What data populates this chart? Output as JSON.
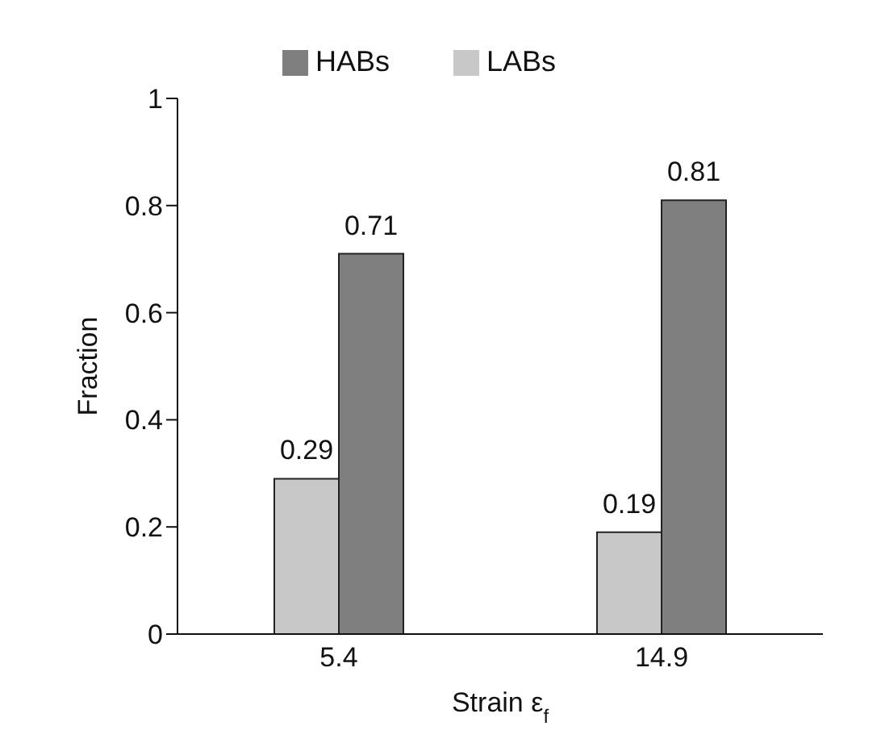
{
  "chart_data": {
    "type": "bar",
    "xlabel": "Strain ε$_{f}$",
    "ylabel": "Fraction",
    "categories": [
      "5.4",
      "14.9"
    ],
    "series": [
      {
        "name": "LABs",
        "color": "#c8c8c8",
        "values": [
          0.29,
          0.19
        ]
      },
      {
        "name": "HABs",
        "color": "#7f7f7f",
        "values": [
          0.71,
          0.81
        ]
      }
    ],
    "ylim": [
      0,
      1
    ],
    "yticks": [
      0,
      0.2,
      0.4,
      0.6,
      0.8,
      1
    ],
    "grid": false,
    "legend": "top",
    "data_labels": true
  }
}
